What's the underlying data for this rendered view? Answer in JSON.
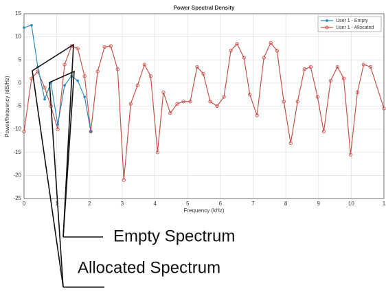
{
  "chart_data": {
    "type": "line",
    "title": "Power Spectral Density",
    "xlabel": "Frequency (kHz)",
    "ylabel": "Power/frequency (dB/Hz)",
    "xlim": [
      0,
      11
    ],
    "ylim": [
      -25,
      15
    ],
    "xticks": [
      0,
      1,
      2,
      3,
      4,
      5,
      6,
      7,
      8,
      9,
      10,
      {
        "value": 11,
        "label": "1"
      }
    ],
    "yticks": [
      -25,
      -20,
      -15,
      -10,
      -5,
      0,
      5,
      10,
      15
    ],
    "grid": true,
    "legend": "upper right",
    "series": [
      {
        "name": "User 1 - Empty",
        "color": "#2b8cbe",
        "x": [
          0,
          0.23,
          0.42,
          0.63,
          0.82,
          1.03,
          1.24,
          1.45,
          1.64,
          1.85,
          2.04
        ],
        "values": [
          12,
          12.5,
          3.5,
          -3.5,
          0,
          -9,
          -0.5,
          1.5,
          0.5,
          -3,
          -10.5
        ]
      },
      {
        "name": "User 1 - Allocated",
        "color": "#c9504a",
        "x": [
          0,
          0.23,
          0.42,
          0.63,
          0.82,
          1.03,
          1.24,
          1.45,
          1.64,
          1.85,
          2.04,
          2.25,
          2.46,
          2.65,
          2.86,
          3.05,
          3.26,
          3.47,
          3.68,
          3.87,
          4.08,
          4.26,
          4.47,
          4.68,
          4.87,
          5.08,
          5.29,
          5.48,
          5.69,
          5.9,
          6.11,
          6.32,
          6.51,
          6.72,
          6.9,
          7.12,
          7.33,
          7.54,
          7.73,
          7.94,
          8.15,
          8.36,
          8.57,
          8.76,
          8.97,
          9.16,
          9.37,
          9.58,
          9.77,
          9.98,
          10.19,
          10.38,
          10.59,
          11
        ],
        "values": [
          -10.5,
          1,
          2.5,
          -1,
          -5,
          -10,
          4,
          8,
          7.5,
          1.5,
          -10.5,
          2.5,
          7.8,
          8,
          3,
          -21,
          -4.5,
          -0.5,
          4,
          1.5,
          -15,
          -2,
          -6.5,
          -4.5,
          -4,
          -4,
          3.5,
          2,
          -4,
          -5,
          -3,
          7,
          8.5,
          5.5,
          -2.5,
          -7,
          5.5,
          8.7,
          7,
          -4,
          -13,
          -4,
          3,
          3.5,
          -3,
          -10.5,
          0.5,
          3.5,
          1,
          -15.5,
          -2,
          4,
          3.5,
          -5.5
        ]
      }
    ],
    "annotations": [
      "Empty Spectrum",
      "Allocated Spectrum"
    ]
  }
}
